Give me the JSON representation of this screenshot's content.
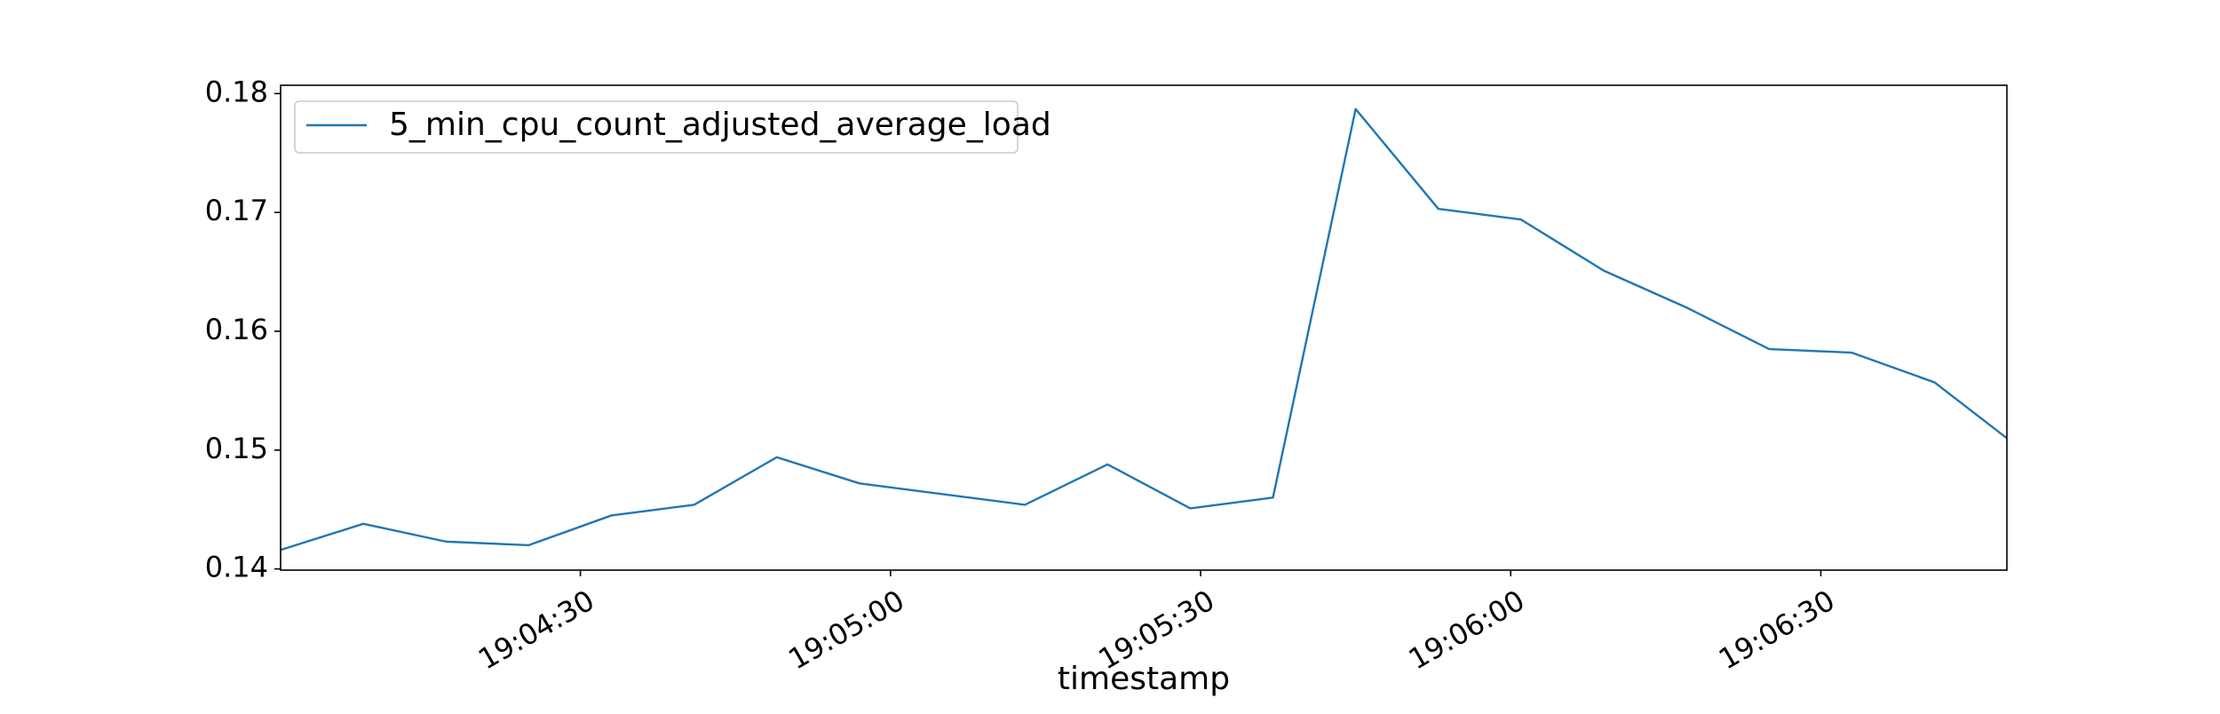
{
  "chart_data": {
    "type": "line",
    "title": "",
    "xlabel": "timestamp",
    "ylabel": "",
    "x_tick_labels": [
      "19:04:30",
      "19:05:00",
      "19:05:30",
      "19:06:00",
      "19:06:30"
    ],
    "x_tick_values": [
      "19:04:30",
      "19:05:00",
      "19:05:30",
      "19:06:00",
      "19:06:30"
    ],
    "xlim": [
      "19:04:01",
      "19:06:48"
    ],
    "y_ticks": [
      0.14,
      0.15,
      0.16,
      0.17,
      0.18
    ],
    "y_tick_labels": [
      "0.14",
      "0.15",
      "0.16",
      "0.17",
      "0.18"
    ],
    "ylim": [
      0.1399,
      0.1807
    ],
    "grid": false,
    "legend_position": "top-left",
    "series": [
      {
        "name": "5_min_cpu_count_adjusted_average_load",
        "color": "#1f77b4",
        "x": [
          "19:04:01",
          "19:04:09",
          "19:04:17",
          "19:04:25",
          "19:04:33",
          "19:04:41",
          "19:04:49",
          "19:04:57",
          "19:05:13",
          "19:05:21",
          "19:05:29",
          "19:05:37",
          "19:05:45",
          "19:05:53",
          "19:06:01",
          "19:06:09",
          "19:06:17",
          "19:06:25",
          "19:06:33",
          "19:06:41",
          "19:06:48"
        ],
        "y": [
          0.1416,
          0.1438,
          0.1423,
          0.142,
          0.1445,
          0.1454,
          0.1494,
          0.1472,
          0.1454,
          0.1488,
          0.1451,
          0.146,
          0.1787,
          0.1703,
          0.1694,
          0.1651,
          0.162,
          0.1585,
          0.1582,
          0.1557,
          0.151
        ]
      }
    ]
  }
}
